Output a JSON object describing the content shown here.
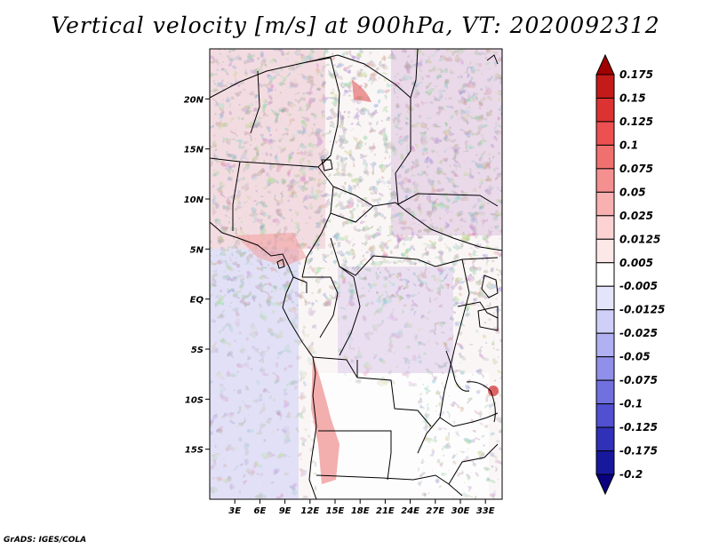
{
  "title": "Vertical velocity [m/s] at 900hPa, VT: 2020092312",
  "credit": "GrADS: IGES/COLA",
  "map": {
    "lon_range": [
      0,
      35
    ],
    "lat_range": [
      -20,
      25
    ],
    "lat_ticks": [
      {
        "value": 20,
        "label": "20N"
      },
      {
        "value": 15,
        "label": "15N"
      },
      {
        "value": 10,
        "label": "10N"
      },
      {
        "value": 5,
        "label": "5N"
      },
      {
        "value": 0,
        "label": "EQ"
      },
      {
        "value": -5,
        "label": "5S"
      },
      {
        "value": -10,
        "label": "10S"
      },
      {
        "value": -15,
        "label": "15S"
      }
    ],
    "lon_ticks": [
      {
        "value": 3,
        "label": "3E"
      },
      {
        "value": 6,
        "label": "6E"
      },
      {
        "value": 9,
        "label": "9E"
      },
      {
        "value": 12,
        "label": "12E"
      },
      {
        "value": 15,
        "label": "15E"
      },
      {
        "value": 18,
        "label": "18E"
      },
      {
        "value": 21,
        "label": "21E"
      },
      {
        "value": 24,
        "label": "24E"
      },
      {
        "value": 27,
        "label": "27E"
      },
      {
        "value": 30,
        "label": "30E"
      },
      {
        "value": 33,
        "label": "33E"
      }
    ]
  },
  "colorbar": {
    "levels": [
      "0.175",
      "0.15",
      "0.125",
      "0.1",
      "0.075",
      "0.05",
      "0.025",
      "0.0125",
      "0.005",
      "-0.005",
      "-0.0125",
      "-0.025",
      "-0.05",
      "-0.075",
      "-0.1",
      "-0.125",
      "-0.175",
      "-0.2"
    ],
    "colors": [
      "#a00000",
      "#c41a1a",
      "#dc3232",
      "#ec5050",
      "#f07070",
      "#f59090",
      "#f9b0b0",
      "#fcd2d2",
      "#fde8e8",
      "#ffffff",
      "#e4e4fb",
      "#cfcff7",
      "#b0b0f2",
      "#9090ea",
      "#7070de",
      "#5050d0",
      "#3030b8",
      "#18189c",
      "#0a0080"
    ]
  }
}
